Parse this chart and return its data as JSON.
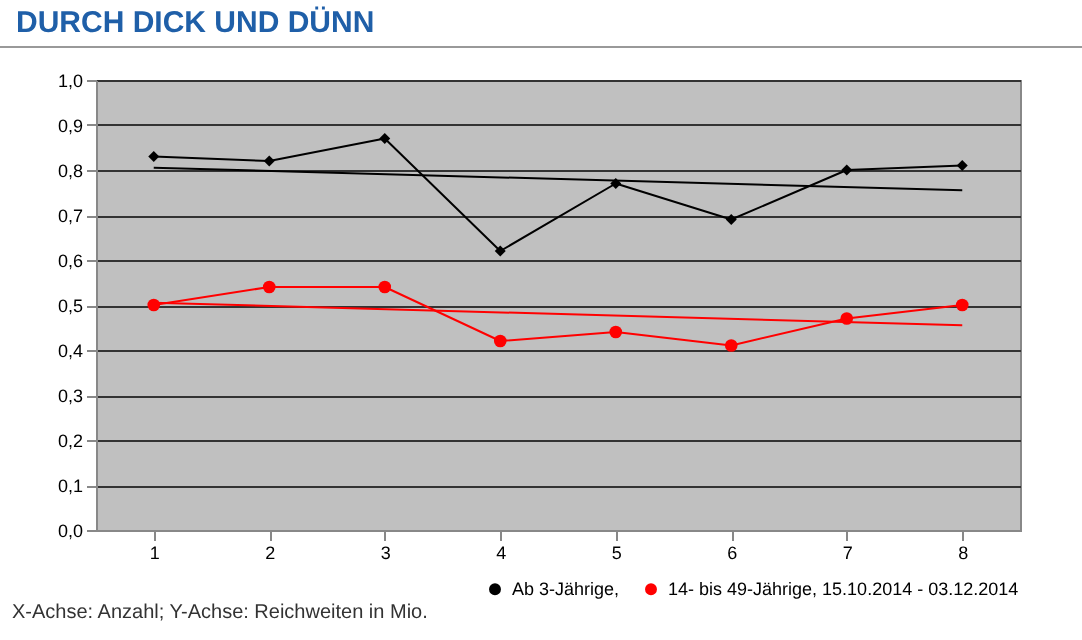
{
  "chart_data": {
    "type": "line",
    "title": "DURCH DICK UND DÜNN",
    "annotations": [
      "X-Achse: Anzahl; Y-Achse: Reichweiten in Mio."
    ],
    "series": [
      {
        "name": "Ab 3-Jährige,",
        "color": "#000000",
        "marker": "diamond",
        "x": [
          1,
          2,
          3,
          4,
          5,
          6,
          7,
          8
        ],
        "values": [
          0.83,
          0.82,
          0.87,
          0.62,
          0.77,
          0.69,
          0.8,
          0.81
        ]
      },
      {
        "name": "14- bis 49-Jährige, 15.10.2014 - 03.12.2014",
        "color": "#ff0000",
        "marker": "circle",
        "x": [
          1,
          2,
          3,
          4,
          5,
          6,
          7,
          8
        ],
        "values": [
          0.5,
          0.54,
          0.54,
          0.42,
          0.44,
          0.41,
          0.47,
          0.5
        ]
      },
      {
        "color": "#000000",
        "x": [
          1,
          8
        ],
        "values": [
          0.805,
          0.755
        ]
      },
      {
        "color": "#ff0000",
        "x": [
          1,
          8
        ],
        "values": [
          0.505,
          0.455
        ]
      }
    ],
    "xlim": [
      0.5,
      8.5
    ],
    "xticks": [
      1,
      2,
      3,
      4,
      5,
      6,
      7,
      8
    ],
    "ylim": [
      0,
      1
    ],
    "yticks": [
      {
        "value": 0,
        "label": "0,0"
      },
      {
        "value": 0.1,
        "label": "0,1"
      },
      {
        "value": 0.2,
        "label": "0,2"
      },
      {
        "value": 0.3,
        "label": "0,3"
      },
      {
        "value": 0.4,
        "label": "0,4"
      },
      {
        "value": 0.5,
        "label": "0,5"
      },
      {
        "value": 0.6,
        "label": "0,6"
      },
      {
        "value": 0.7,
        "label": "0,7"
      },
      {
        "value": 0.8,
        "label": "0,8"
      },
      {
        "value": 0.9,
        "label": "0,9"
      },
      {
        "value": 1,
        "label": "1,0"
      }
    ],
    "grid": "y",
    "legend": "bottom"
  }
}
